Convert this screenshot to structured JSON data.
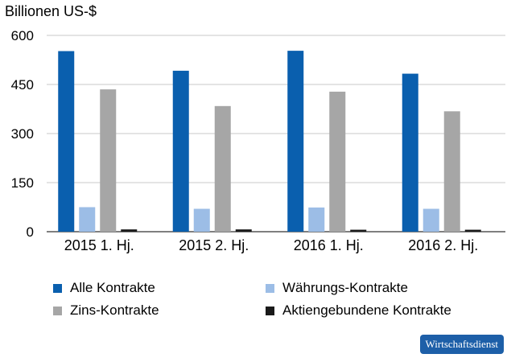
{
  "chart_data": {
    "type": "bar",
    "ylabel": "Billionen US-$",
    "ylim": [
      0,
      600
    ],
    "yticks": [
      0,
      150,
      300,
      450,
      600
    ],
    "grid": true,
    "legend_position": "bottom",
    "categories": [
      "2015 1. Hj.",
      "2015 2. Hj.",
      "2016 1. Hj.",
      "2016 2. Hj."
    ],
    "series": [
      {
        "name": "Alle Kontrakte",
        "color": "#0a5fae",
        "values": [
          552,
          492,
          553,
          483
        ]
      },
      {
        "name": "Währungs-Kontrakte",
        "color": "#9cbde6",
        "values": [
          75,
          70,
          74,
          70
        ]
      },
      {
        "name": "Zins-Kontrakte",
        "color": "#a6a6a6",
        "values": [
          435,
          384,
          428,
          368
        ]
      },
      {
        "name": "Aktiengebundene Kontrakte",
        "color": "#1a1a1a",
        "values": [
          7,
          7,
          6,
          6
        ]
      }
    ]
  },
  "badge": {
    "label": "Wirtschaftsdienst",
    "color": "#1d5fa8"
  }
}
